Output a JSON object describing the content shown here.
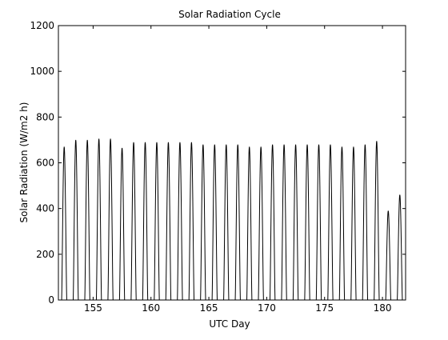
{
  "chart_data": {
    "type": "line",
    "title": "Solar Radiation Cycle",
    "xlabel": "UTC Day",
    "ylabel": "Solar Radiation (W/m2 h)",
    "xlim": [
      152,
      182
    ],
    "ylim": [
      0,
      1200
    ],
    "xticks": [
      155,
      160,
      165,
      170,
      175,
      180
    ],
    "yticks": [
      0,
      200,
      400,
      600,
      800,
      1000,
      1200
    ],
    "grid": false,
    "legend": "none",
    "line_color": "#000000",
    "series": [
      {
        "name": "",
        "daily_peaks": [
          {
            "day": 152.5,
            "peak": 670
          },
          {
            "day": 153.5,
            "peak": 700
          },
          {
            "day": 154.5,
            "peak": 700
          },
          {
            "day": 155.5,
            "peak": 705
          },
          {
            "day": 156.5,
            "peak": 705
          },
          {
            "day": 157.5,
            "peak": 665
          },
          {
            "day": 158.5,
            "peak": 690
          },
          {
            "day": 159.5,
            "peak": 690
          },
          {
            "day": 160.5,
            "peak": 690
          },
          {
            "day": 161.5,
            "peak": 690
          },
          {
            "day": 162.5,
            "peak": 690
          },
          {
            "day": 163.5,
            "peak": 690
          },
          {
            "day": 164.5,
            "peak": 680
          },
          {
            "day": 165.5,
            "peak": 680
          },
          {
            "day": 166.5,
            "peak": 680
          },
          {
            "day": 167.5,
            "peak": 680
          },
          {
            "day": 168.5,
            "peak": 670
          },
          {
            "day": 169.5,
            "peak": 670
          },
          {
            "day": 170.5,
            "peak": 680
          },
          {
            "day": 171.5,
            "peak": 680
          },
          {
            "day": 172.5,
            "peak": 680
          },
          {
            "day": 173.5,
            "peak": 680
          },
          {
            "day": 174.5,
            "peak": 680
          },
          {
            "day": 175.5,
            "peak": 680
          },
          {
            "day": 176.5,
            "peak": 670
          },
          {
            "day": 177.5,
            "peak": 670
          },
          {
            "day": 178.5,
            "peak": 680
          },
          {
            "day": 179.5,
            "peak": 695
          },
          {
            "day": 180.5,
            "peak": 390
          },
          {
            "day": 181.5,
            "peak": 460
          }
        ]
      }
    ]
  }
}
